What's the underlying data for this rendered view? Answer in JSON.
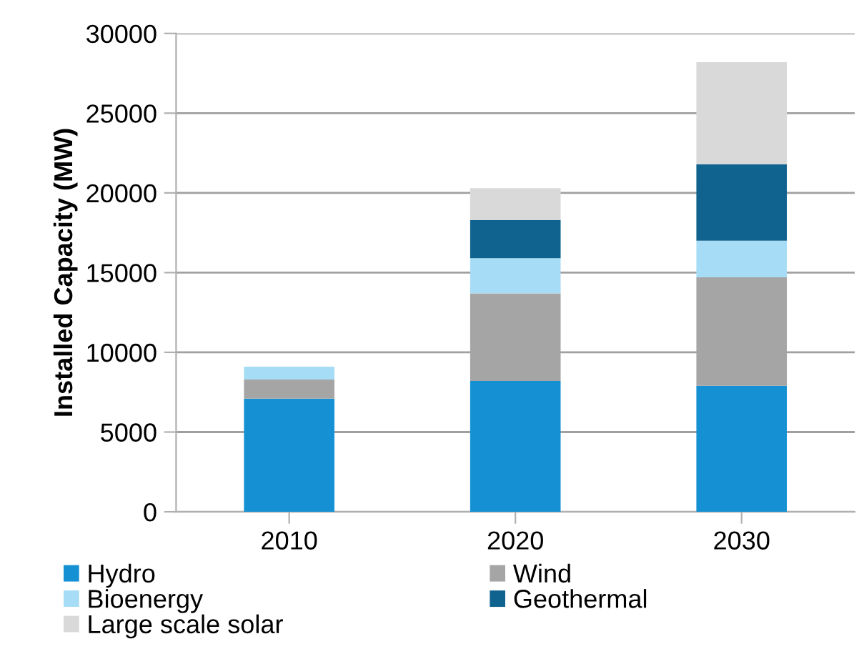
{
  "chart_data": {
    "type": "bar",
    "stacked": true,
    "ylabel": "Installed Capacity (MW)",
    "categories": [
      "2010",
      "2020",
      "2030"
    ],
    "series": [
      {
        "name": "Hydro",
        "color": "#1591d3",
        "values": [
          7100,
          8200,
          7900
        ]
      },
      {
        "name": "Wind",
        "color": "#a5a5a5",
        "values": [
          1200,
          5500,
          6800
        ]
      },
      {
        "name": "Bioenergy",
        "color": "#a6dcf5",
        "values": [
          800,
          2200,
          2300
        ]
      },
      {
        "name": "Geothermal",
        "color": "#10638f",
        "values": [
          0,
          2400,
          4800
        ]
      },
      {
        "name": "Large scale solar",
        "color": "#d9d9d9",
        "values": [
          0,
          2000,
          6400
        ]
      }
    ],
    "ylim": [
      0,
      30000
    ],
    "yticks": [
      0,
      5000,
      10000,
      15000,
      20000,
      25000,
      30000
    ],
    "grid": "y",
    "legend": "bottom"
  }
}
